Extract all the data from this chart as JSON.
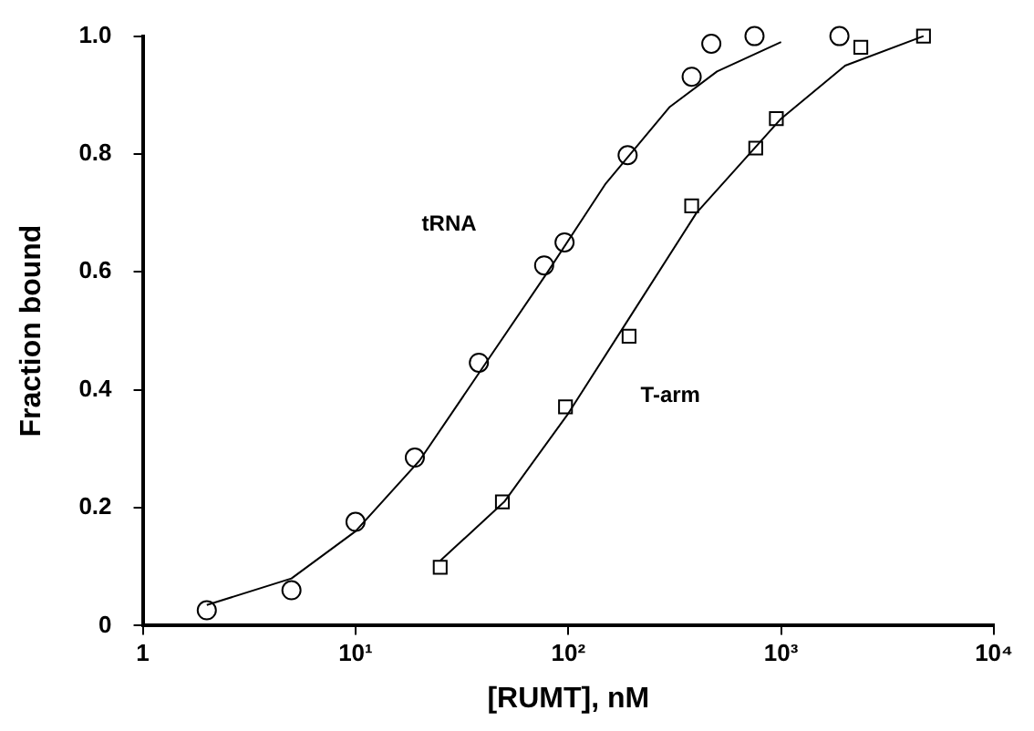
{
  "chart_data": {
    "type": "scatter",
    "xlabel": "[RUMT], nM",
    "ylabel": "Fraction bound",
    "log": "x",
    "grid": false,
    "legend": false,
    "xlim": [
      1,
      10000
    ],
    "xticks": [
      1,
      {
        "value": 10,
        "label": "10¹"
      },
      {
        "value": 100,
        "label": "10²"
      },
      {
        "value": 1000,
        "label": "10³"
      },
      {
        "value": 10000,
        "label": "10⁴"
      }
    ],
    "ylim": [
      0,
      1
    ],
    "yticks": [
      0,
      {
        "value": 0.2,
        "label": "0.2"
      },
      {
        "value": 0.4,
        "label": "0.4"
      },
      {
        "value": 0.6,
        "label": "0.6"
      },
      {
        "value": 0.8,
        "label": "0.8"
      },
      {
        "value": 1,
        "label": "1.0"
      }
    ],
    "series": [
      {
        "name": "tRNA",
        "marker": "circle",
        "color": "#000000",
        "x": [
          2,
          5,
          10,
          19,
          38,
          77,
          96,
          190,
          380,
          470,
          750,
          1880
        ],
        "values": [
          0.026,
          0.06,
          0.176,
          0.285,
          0.446,
          0.611,
          0.65,
          0.798,
          0.931,
          0.987,
          1.0,
          1.0
        ]
      },
      {
        "name": "T-arm",
        "marker": "square",
        "color": "#000000",
        "x": [
          25,
          49,
          97,
          193,
          380,
          760,
          950,
          2370,
          4670
        ],
        "values": [
          0.099,
          0.21,
          0.371,
          0.491,
          0.712,
          0.81,
          0.86,
          0.981,
          1.0
        ]
      },
      {
        "type": "line",
        "marker": "none",
        "color": "#000000",
        "x": [
          2,
          5,
          10,
          20,
          40,
          80,
          150,
          300,
          500,
          1000
        ],
        "values": [
          0.035,
          0.08,
          0.16,
          0.28,
          0.44,
          0.6,
          0.75,
          0.88,
          0.94,
          0.99
        ]
      },
      {
        "type": "line",
        "marker": "none",
        "color": "#000000",
        "x": [
          25,
          50,
          100,
          200,
          400,
          1000,
          2000,
          4670
        ],
        "values": [
          0.11,
          0.21,
          0.36,
          0.53,
          0.7,
          0.86,
          0.95,
          1.0
        ]
      }
    ]
  }
}
